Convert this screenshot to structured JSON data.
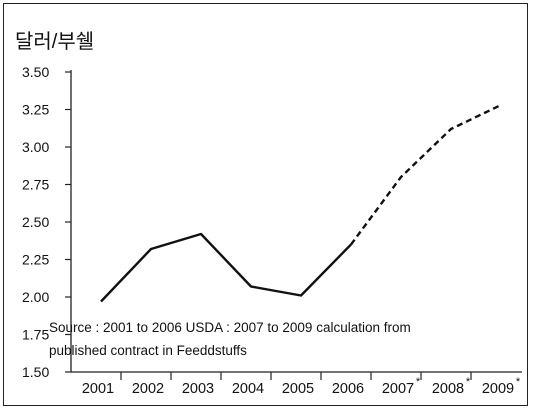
{
  "chart_data": {
    "type": "line",
    "ylabel": "달러/부쉘",
    "categories": [
      "2001",
      "2002",
      "2003",
      "2004",
      "2005",
      "2006",
      "2007",
      "2008",
      "2009"
    ],
    "category_marks": [
      "",
      "",
      "",
      "",
      "",
      "",
      "*",
      "*",
      "*"
    ],
    "yticks": [
      "1.50",
      "1.75",
      "2.00",
      "2.25",
      "2.50",
      "2.75",
      "3.00",
      "3.25",
      "3.50"
    ],
    "ylim": [
      1.5,
      3.5
    ],
    "series": [
      {
        "style": "solid",
        "values": [
          1.97,
          2.32,
          2.42,
          2.07,
          2.01,
          2.35,
          null,
          null,
          null
        ]
      },
      {
        "style": "dashed",
        "values": [
          null,
          null,
          null,
          null,
          null,
          2.35,
          2.8,
          3.12,
          3.28
        ]
      }
    ],
    "annotation_lines": [
      "Source : 2001 to 2006 USDA : 2007 to 2009 calculation from",
      "published contract in Feeddstuffs"
    ],
    "grid": false,
    "legend": "none"
  }
}
